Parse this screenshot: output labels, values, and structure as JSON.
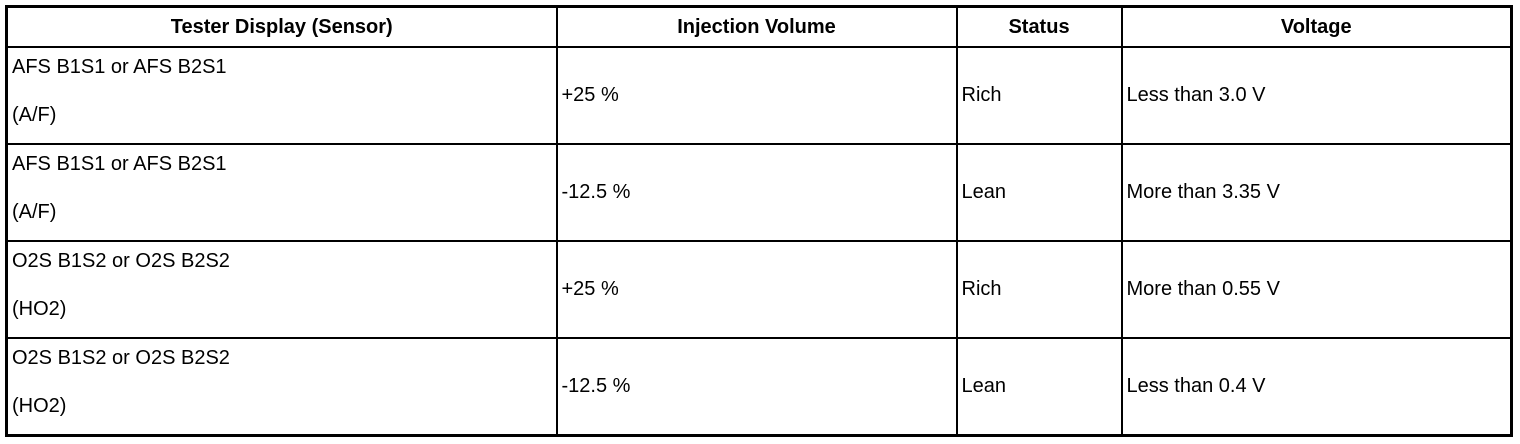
{
  "table": {
    "header": [
      "Tester Display (Sensor)",
      "Injection Volume",
      "Status",
      "Voltage"
    ],
    "rows": [
      [
        [
          "AFS B1S1 or AFS B2S1",
          "(A/F)"
        ],
        "+25 %",
        "Rich",
        "Less than 3.0 V"
      ],
      [
        [
          "AFS B1S1 or AFS B2S1",
          "(A/F)"
        ],
        "-12.5 %",
        "Lean",
        "More than 3.35 V"
      ],
      [
        [
          "O2S B1S2 or O2S B2S2",
          "(HO2)"
        ],
        "+25 %",
        "Rich",
        "More than 0.55 V"
      ],
      [
        [
          "O2S B1S2 or O2S B2S2",
          "(HO2)"
        ],
        "-12.5 %",
        "Lean",
        "Less than 0.4 V"
      ]
    ]
  }
}
